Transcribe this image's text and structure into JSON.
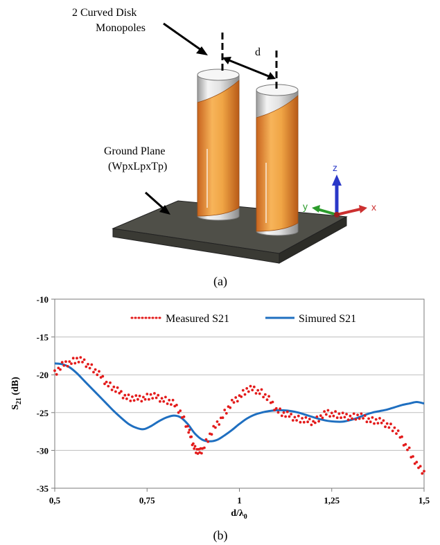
{
  "figure_a": {
    "label": "(a)",
    "annotations": {
      "monopoles_line1": "2 Curved Disk",
      "monopoles_line2": "Monopoles",
      "distance": "d",
      "ground_line1": "Ground Plane",
      "ground_line2": "(WpxLpxTp)"
    },
    "axes": {
      "z": "z",
      "y": "y",
      "x": "x"
    },
    "colors": {
      "copper": "#e08a35",
      "silver": "#d6d6d6",
      "ground": "#4a4a44",
      "axis_z": "#2a38c8",
      "axis_y": "#2c9c2c",
      "axis_x": "#cc3030"
    }
  },
  "figure_b": {
    "label": "(b)",
    "chart_data": {
      "type": "line",
      "xlabel_main": "d/λ",
      "xlabel_sub": "0",
      "ylabel_main": "S",
      "ylabel_sub": "21",
      "ylabel_unit": " (dB)",
      "xlim": [
        0.5,
        1.5
      ],
      "ylim": [
        -35,
        -10
      ],
      "x_ticks": [
        0.5,
        0.75,
        1,
        1.25,
        1.5
      ],
      "x_tick_labels": [
        "0,5",
        "0,75",
        "1",
        "1,25",
        "1,5"
      ],
      "y_ticks": [
        -10,
        -15,
        -20,
        -25,
        -30,
        -35
      ],
      "y_tick_labels": [
        "-10",
        "-15",
        "-20",
        "-25",
        "-30",
        "-35"
      ],
      "grid": "horizontal",
      "legend_position": "top",
      "series": [
        {
          "name": "Measured S21",
          "style": "dots",
          "color": "#e31b1b",
          "x": [
            0.5,
            0.52,
            0.54,
            0.56,
            0.58,
            0.6,
            0.62,
            0.64,
            0.66,
            0.68,
            0.7,
            0.72,
            0.74,
            0.76,
            0.78,
            0.8,
            0.82,
            0.84,
            0.86,
            0.87,
            0.88,
            0.89,
            0.9,
            0.92,
            0.94,
            0.96,
            0.98,
            1.0,
            1.02,
            1.04,
            1.06,
            1.08,
            1.1,
            1.12,
            1.14,
            1.16,
            1.18,
            1.2,
            1.22,
            1.24,
            1.26,
            1.28,
            1.3,
            1.32,
            1.34,
            1.36,
            1.38,
            1.4,
            1.42,
            1.44,
            1.46,
            1.48,
            1.5
          ],
          "values": [
            -19.8,
            -18.8,
            -18.3,
            -18.0,
            -18.3,
            -19.0,
            -20.0,
            -21.0,
            -21.8,
            -22.5,
            -23.0,
            -23.2,
            -23.0,
            -22.8,
            -23.0,
            -23.3,
            -23.8,
            -24.8,
            -27.0,
            -28.5,
            -29.8,
            -30.3,
            -29.8,
            -28.0,
            -26.5,
            -25.0,
            -23.8,
            -22.8,
            -22.0,
            -21.9,
            -22.3,
            -23.3,
            -24.5,
            -25.2,
            -25.5,
            -25.8,
            -26.1,
            -26.2,
            -25.6,
            -25.0,
            -25.2,
            -25.5,
            -25.5,
            -25.5,
            -25.7,
            -26.0,
            -26.2,
            -26.5,
            -27.2,
            -28.5,
            -30.0,
            -32.0,
            -32.8
          ]
        },
        {
          "name": "Simured S21",
          "style": "line",
          "color": "#1f6fc0",
          "x": [
            0.5,
            0.52,
            0.54,
            0.56,
            0.58,
            0.6,
            0.62,
            0.64,
            0.66,
            0.68,
            0.7,
            0.72,
            0.74,
            0.76,
            0.78,
            0.8,
            0.82,
            0.84,
            0.86,
            0.88,
            0.9,
            0.92,
            0.94,
            0.96,
            0.98,
            1.0,
            1.02,
            1.04,
            1.06,
            1.08,
            1.1,
            1.12,
            1.14,
            1.16,
            1.18,
            1.2,
            1.22,
            1.24,
            1.26,
            1.28,
            1.3,
            1.32,
            1.34,
            1.36,
            1.38,
            1.4,
            1.42,
            1.44,
            1.46,
            1.48,
            1.5
          ],
          "values": [
            -18.5,
            -18.6,
            -19.0,
            -19.8,
            -20.8,
            -21.8,
            -22.8,
            -23.8,
            -24.8,
            -25.7,
            -26.5,
            -27.0,
            -27.2,
            -26.8,
            -26.2,
            -25.7,
            -25.4,
            -25.6,
            -26.5,
            -27.8,
            -28.6,
            -28.8,
            -28.6,
            -28.0,
            -27.3,
            -26.5,
            -25.8,
            -25.3,
            -25.0,
            -24.8,
            -24.7,
            -24.7,
            -24.8,
            -25.0,
            -25.3,
            -25.6,
            -25.9,
            -26.1,
            -26.2,
            -26.2,
            -26.0,
            -25.7,
            -25.3,
            -25.0,
            -24.8,
            -24.6,
            -24.3,
            -24.0,
            -23.8,
            -23.6,
            -23.8
          ]
        }
      ]
    }
  }
}
